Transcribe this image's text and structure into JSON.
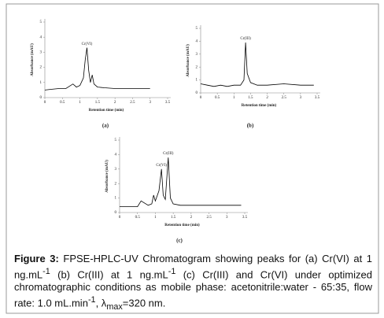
{
  "chart_data": [
    {
      "type": "line",
      "panel_label": "(a)",
      "y_label": "Absorbance (mAU)",
      "x_label": "Retention time (min)",
      "color": "#000000",
      "x": [
        0,
        0.2,
        0.4,
        0.6,
        0.8,
        0.9,
        1.0,
        1.1,
        1.15,
        1.2,
        1.25,
        1.3,
        1.35,
        1.4,
        1.5,
        1.7,
        2.0,
        2.5,
        3.0
      ],
      "values": [
        0.5,
        0.55,
        0.6,
        0.6,
        0.9,
        0.7,
        0.8,
        1.3,
        2.5,
        3.3,
        1.8,
        1.0,
        1.5,
        0.9,
        0.7,
        0.65,
        0.6,
        0.6,
        0.6
      ],
      "annotations": [
        {
          "text": "Cr(VI)",
          "x": 1.2
        }
      ],
      "xlim": [
        0,
        3.5
      ],
      "ylim": [
        0,
        5
      ],
      "xticks": [
        0,
        0.5,
        1,
        1.5,
        2,
        2.5,
        3,
        3.5
      ],
      "yticks": [
        0,
        1,
        2,
        3,
        4,
        5
      ]
    },
    {
      "type": "line",
      "panel_label": "(b)",
      "y_label": "Absorbance (mAU)",
      "x_label": "Retention time (min)",
      "color": "#000000",
      "x": [
        0,
        0.2,
        0.4,
        0.6,
        0.8,
        1.0,
        1.2,
        1.3,
        1.35,
        1.4,
        1.5,
        1.7,
        2.0,
        2.5,
        3.0,
        3.4
      ],
      "values": [
        0.7,
        0.6,
        0.5,
        0.6,
        0.5,
        0.6,
        0.6,
        1.0,
        3.9,
        1.5,
        0.8,
        0.6,
        0.6,
        0.7,
        0.6,
        0.6
      ],
      "annotations": [
        {
          "text": "Cr(III)",
          "x": 1.35
        }
      ],
      "xlim": [
        0,
        3.5
      ],
      "ylim": [
        0,
        5
      ],
      "xticks": [
        0,
        0.5,
        1,
        1.5,
        2,
        2.5,
        3,
        3.5
      ],
      "yticks": [
        0,
        1,
        2,
        3,
        4,
        5
      ]
    },
    {
      "type": "line",
      "panel_label": "(c)",
      "y_label": "Absorbance (mAU)",
      "x_label": "Retention time (min)",
      "color": "#000000",
      "x": [
        0,
        0.3,
        0.5,
        0.6,
        0.8,
        0.9,
        0.95,
        1.0,
        1.1,
        1.17,
        1.22,
        1.28,
        1.36,
        1.42,
        1.5,
        1.7,
        2.0,
        2.5,
        3.0,
        3.4
      ],
      "values": [
        0.4,
        0.4,
        0.4,
        0.8,
        0.5,
        0.6,
        1.2,
        0.8,
        1.5,
        3.0,
        1.2,
        0.9,
        3.8,
        1.0,
        0.6,
        0.5,
        0.5,
        0.5,
        0.5,
        0.5
      ],
      "annotations": [
        {
          "text": "Cr(VI)",
          "x": 1.17
        },
        {
          "text": "Cr(III)",
          "x": 1.36
        }
      ],
      "xlim": [
        0,
        3.5
      ],
      "ylim": [
        0,
        5
      ],
      "xticks": [
        0,
        0.5,
        1,
        1.5,
        2,
        2.5,
        3,
        3.5
      ],
      "yticks": [
        0,
        1,
        2,
        3,
        4,
        5
      ]
    }
  ],
  "caption": {
    "label": "Figure 3:",
    "runs": [
      {
        "text": " FPSE-HPLC-UV Chromatogram showing peaks for (a) Cr(VI) at 1 ng.mL"
      },
      {
        "sup": "-1"
      },
      {
        "text": " (b) Cr(III) at 1 ng.mL"
      },
      {
        "sup": "-1"
      },
      {
        "text": " (c) Cr(III) and Cr(VI) under optimized chromatographic conditions as mobile phase: acetonitrile:water - 65:35, flow rate: 1.0 mL.min"
      },
      {
        "sup": "-1"
      },
      {
        "text": ", λ"
      },
      {
        "sub": "max"
      },
      {
        "text": "=320 nm."
      }
    ]
  }
}
